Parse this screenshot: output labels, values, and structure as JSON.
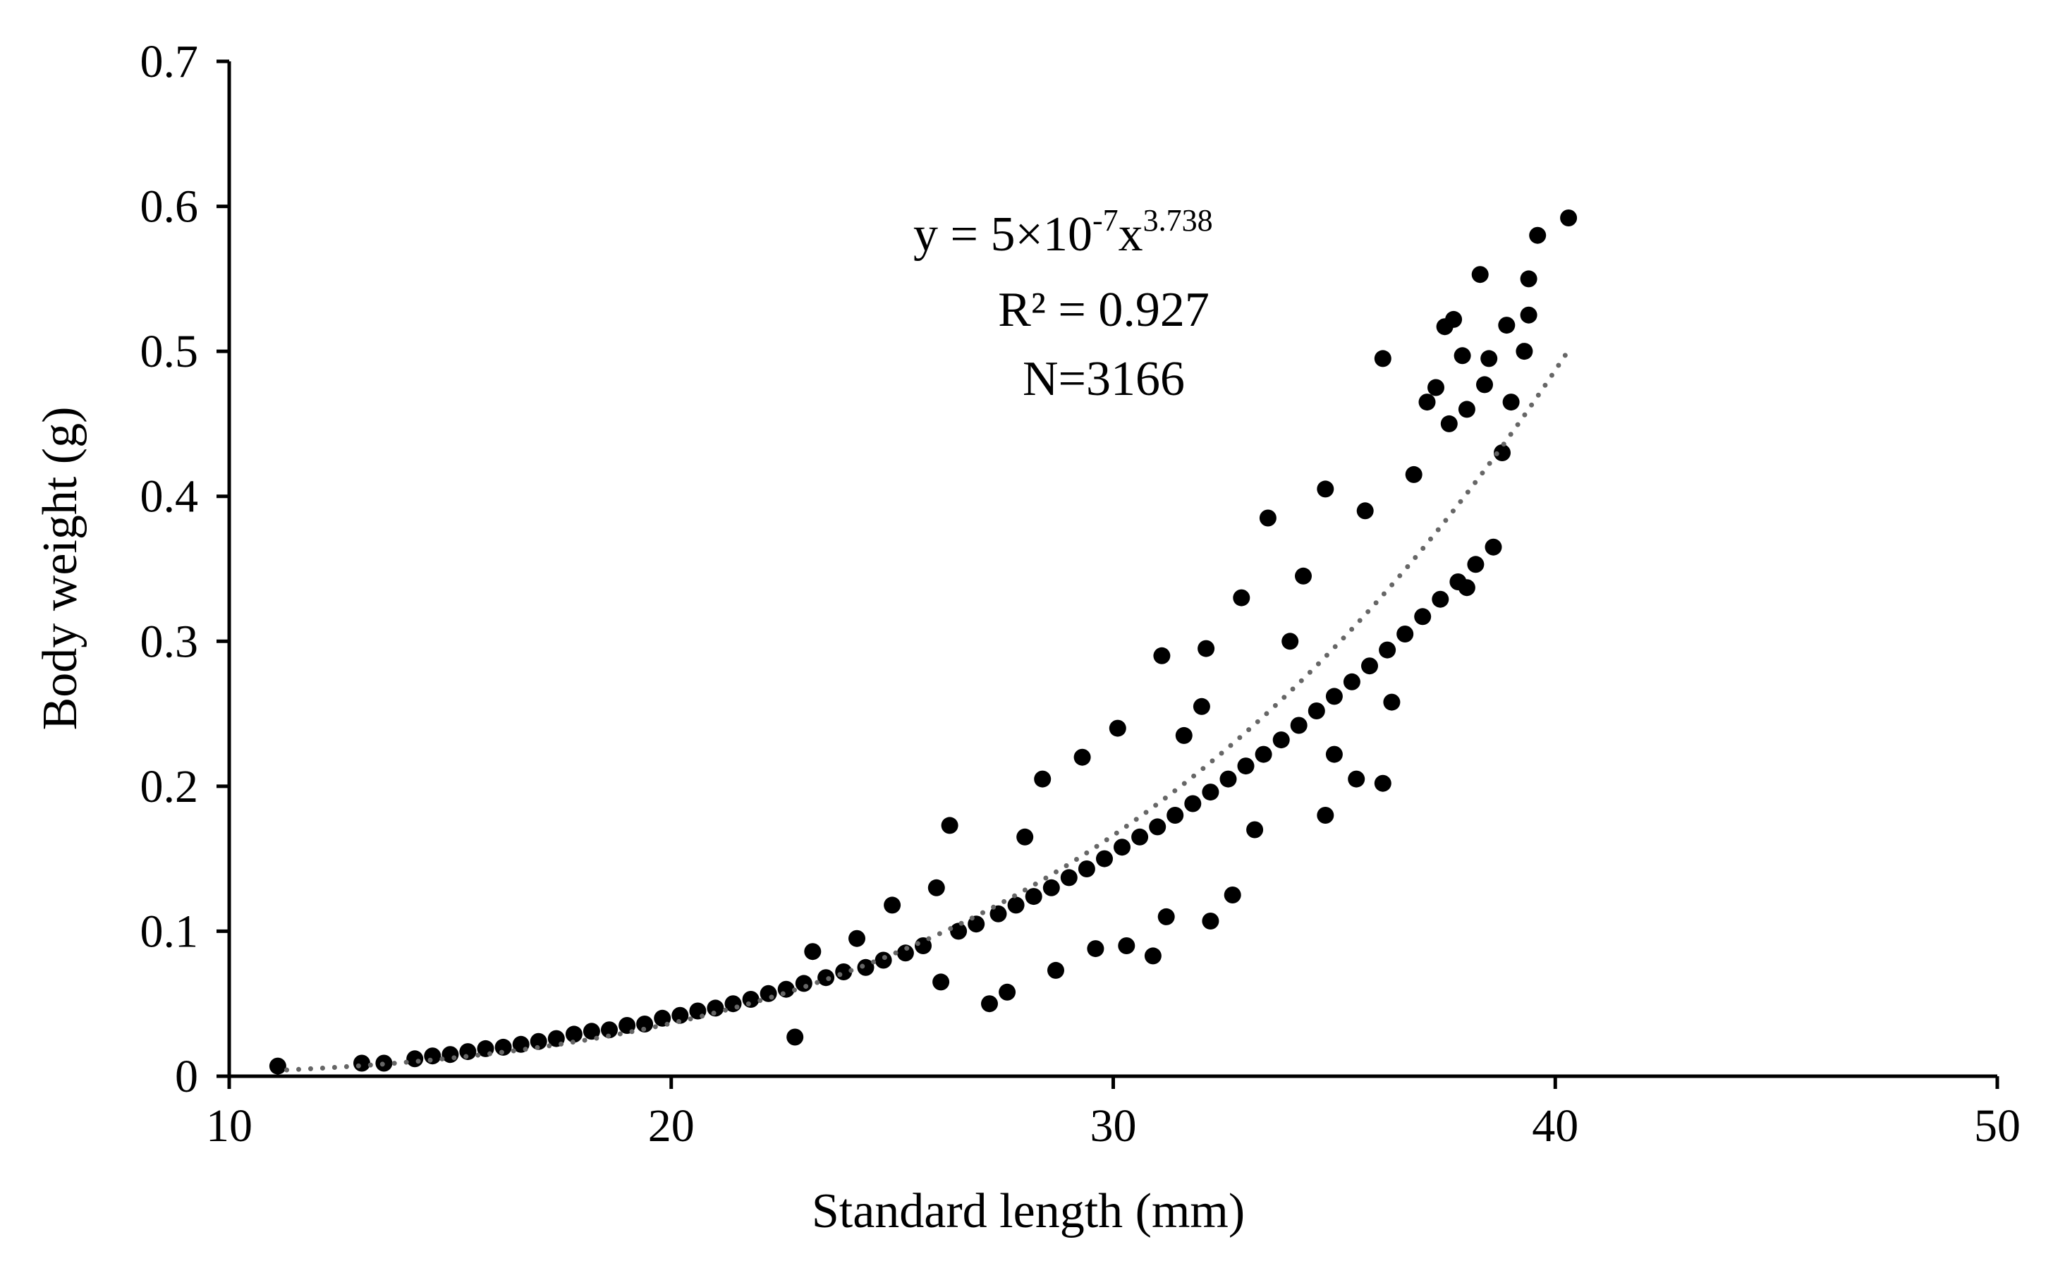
{
  "chart_data": {
    "type": "scatter",
    "xlabel": "Standard length (mm)",
    "ylabel": "Body weight (g)",
    "xlim": [
      10,
      50
    ],
    "ylim": [
      0,
      0.7
    ],
    "xticks": [
      "10",
      "20",
      "30",
      "40",
      "50"
    ],
    "yticks": [
      "0",
      "0.1",
      "0.2",
      "0.3",
      "0.4",
      "0.5",
      "0.6",
      "0.7"
    ],
    "grid": false,
    "legend": "none",
    "colors": {
      "points": "#000000",
      "trendline": "#666666"
    },
    "trendline": {
      "kind": "power",
      "a": 5e-07,
      "b": 3.738,
      "x_range": [
        11.3,
        40.3
      ],
      "style": "dotted"
    },
    "annotation": {
      "equation_prefix": "y = 5×10",
      "equation_exp1": "-7",
      "equation_mid": "x",
      "equation_exp2": "3.738",
      "r2": "R² = 0.927",
      "n": "N=3166"
    },
    "series": [
      {
        "points": [
          [
            11.1,
            0.007
          ],
          [
            13.0,
            0.009
          ],
          [
            13.5,
            0.009
          ],
          [
            14.2,
            0.012
          ],
          [
            14.6,
            0.014
          ],
          [
            15.0,
            0.015
          ],
          [
            15.4,
            0.017
          ],
          [
            15.8,
            0.019
          ],
          [
            16.2,
            0.02
          ],
          [
            16.6,
            0.022
          ],
          [
            17.0,
            0.024
          ],
          [
            17.4,
            0.026
          ],
          [
            17.8,
            0.029
          ],
          [
            18.2,
            0.031
          ],
          [
            18.6,
            0.032
          ],
          [
            19.0,
            0.035
          ],
          [
            19.4,
            0.036
          ],
          [
            19.8,
            0.04
          ],
          [
            20.2,
            0.042
          ],
          [
            20.6,
            0.045
          ],
          [
            21.0,
            0.047
          ],
          [
            21.4,
            0.05
          ],
          [
            21.8,
            0.053
          ],
          [
            22.2,
            0.057
          ],
          [
            22.6,
            0.06
          ],
          [
            22.8,
            0.027
          ],
          [
            23.0,
            0.064
          ],
          [
            23.2,
            0.086
          ],
          [
            23.5,
            0.068
          ],
          [
            23.9,
            0.072
          ],
          [
            24.2,
            0.095
          ],
          [
            24.4,
            0.075
          ],
          [
            24.8,
            0.08
          ],
          [
            25.0,
            0.118
          ],
          [
            25.3,
            0.085
          ],
          [
            25.7,
            0.09
          ],
          [
            26.0,
            0.13
          ],
          [
            26.1,
            0.065
          ],
          [
            26.3,
            0.173
          ],
          [
            26.5,
            0.1
          ],
          [
            26.9,
            0.105
          ],
          [
            27.2,
            0.05
          ],
          [
            27.4,
            0.112
          ],
          [
            27.6,
            0.058
          ],
          [
            27.8,
            0.118
          ],
          [
            28.0,
            0.165
          ],
          [
            28.2,
            0.124
          ],
          [
            28.4,
            0.205
          ],
          [
            28.6,
            0.13
          ],
          [
            28.7,
            0.073
          ],
          [
            29.0,
            0.137
          ],
          [
            29.3,
            0.22
          ],
          [
            29.4,
            0.143
          ],
          [
            29.6,
            0.088
          ],
          [
            29.8,
            0.15
          ],
          [
            30.1,
            0.24
          ],
          [
            30.2,
            0.158
          ],
          [
            30.3,
            0.09
          ],
          [
            30.6,
            0.165
          ],
          [
            30.9,
            0.083
          ],
          [
            31.0,
            0.172
          ],
          [
            31.1,
            0.29
          ],
          [
            31.2,
            0.11
          ],
          [
            31.4,
            0.18
          ],
          [
            31.6,
            0.235
          ],
          [
            31.8,
            0.188
          ],
          [
            32.0,
            0.255
          ],
          [
            32.1,
            0.295
          ],
          [
            32.2,
            0.196
          ],
          [
            32.2,
            0.107
          ],
          [
            32.6,
            0.205
          ],
          [
            32.7,
            0.125
          ],
          [
            32.9,
            0.33
          ],
          [
            33.0,
            0.214
          ],
          [
            33.2,
            0.17
          ],
          [
            33.4,
            0.222
          ],
          [
            33.5,
            0.385
          ],
          [
            33.8,
            0.232
          ],
          [
            34.0,
            0.3
          ],
          [
            34.2,
            0.242
          ],
          [
            34.3,
            0.345
          ],
          [
            34.6,
            0.252
          ],
          [
            34.8,
            0.18
          ],
          [
            34.8,
            0.405
          ],
          [
            35.0,
            0.262
          ],
          [
            35.0,
            0.222
          ],
          [
            35.4,
            0.272
          ],
          [
            35.5,
            0.205
          ],
          [
            35.7,
            0.39
          ],
          [
            35.8,
            0.283
          ],
          [
            36.1,
            0.495
          ],
          [
            36.1,
            0.202
          ],
          [
            36.2,
            0.294
          ],
          [
            36.3,
            0.258
          ],
          [
            36.6,
            0.305
          ],
          [
            36.8,
            0.415
          ],
          [
            37.0,
            0.317
          ],
          [
            37.1,
            0.465
          ],
          [
            37.3,
            0.475
          ],
          [
            37.4,
            0.329
          ],
          [
            37.5,
            0.517
          ],
          [
            37.6,
            0.45
          ],
          [
            37.7,
            0.522
          ],
          [
            37.8,
            0.341
          ],
          [
            37.9,
            0.497
          ],
          [
            38.0,
            0.46
          ],
          [
            38.0,
            0.337
          ],
          [
            38.2,
            0.353
          ],
          [
            38.3,
            0.553
          ],
          [
            38.4,
            0.477
          ],
          [
            38.5,
            0.495
          ],
          [
            38.6,
            0.365
          ],
          [
            38.8,
            0.43
          ],
          [
            38.9,
            0.518
          ],
          [
            39.0,
            0.465
          ],
          [
            39.3,
            0.5
          ],
          [
            39.4,
            0.55
          ],
          [
            39.4,
            0.525
          ],
          [
            39.6,
            0.58
          ],
          [
            40.3,
            0.592
          ]
        ]
      }
    ]
  }
}
